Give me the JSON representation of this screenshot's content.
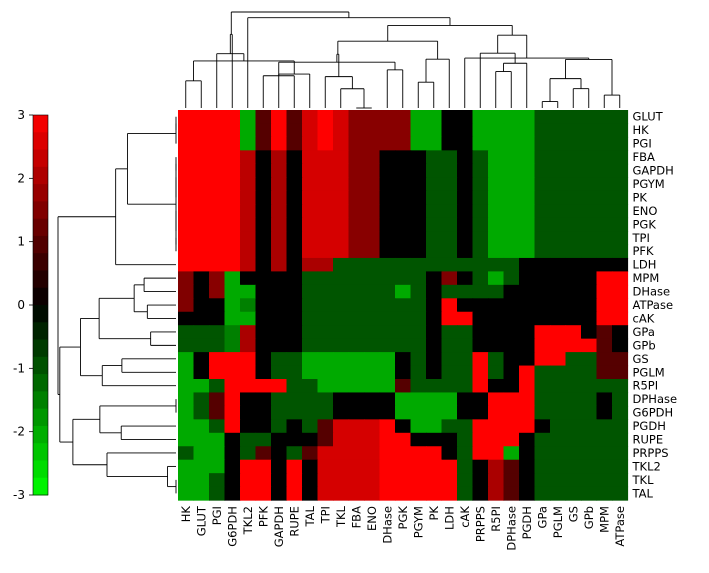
{
  "chart_data": {
    "type": "heatmap",
    "title": "",
    "xlabel": "",
    "ylabel": "",
    "colorbar": {
      "min": -3,
      "max": 3,
      "ticks": [
        3,
        2,
        1,
        0,
        -1,
        -2,
        -3
      ],
      "colormap": "green-black-red",
      "colors": {
        "low": "#00ff00",
        "mid": "#000000",
        "high": "#ff0000"
      }
    },
    "columns": [
      "HK",
      "GLUT",
      "PGI",
      "G6PDH",
      "TKL2",
      "PFK",
      "GAPDH",
      "RUPE",
      "TAL",
      "TPI",
      "TKL",
      "FBA",
      "ENO",
      "DHase",
      "PGK",
      "PGYM",
      "PK",
      "LDH",
      "cAK",
      "PRPPS",
      "R5PI",
      "DPHase",
      "PGDH",
      "GPa",
      "PGLM",
      "GS",
      "GPb",
      "MPM",
      "ATPase"
    ],
    "rows": [
      "GLUT",
      "HK",
      "PGI",
      "FBA",
      "GAPDH",
      "PGYM",
      "PK",
      "ENO",
      "PGK",
      "TPI",
      "PFK",
      "LDH",
      "MPM",
      "DHase",
      "ATPase",
      "cAK",
      "GPa",
      "GPb",
      "GS",
      "PGLM",
      "R5PI",
      "DPHase",
      "G6PDH",
      "PGDH",
      "RUPE",
      "PRPPS",
      "TKL2",
      "TKL",
      "TAL"
    ],
    "values": [
      [
        3,
        3,
        3,
        3,
        -2,
        1,
        3,
        1,
        2.5,
        3,
        2.5,
        1.6,
        1.6,
        1.6,
        1.6,
        -2,
        -2,
        0,
        0,
        -2,
        -2,
        -2,
        -2,
        -1,
        -1,
        -1,
        -1,
        -1,
        -1
      ],
      [
        3,
        3,
        3,
        3,
        -2,
        1,
        3,
        1,
        2.5,
        3,
        2.5,
        1.6,
        1.6,
        1.6,
        1.6,
        -2,
        -2,
        0,
        0,
        -2,
        -2,
        -2,
        -2,
        -1,
        -1,
        -1,
        -1,
        -1,
        -1
      ],
      [
        3,
        3,
        3,
        3,
        -2,
        1,
        3,
        1,
        2.5,
        3,
        2.5,
        1.6,
        1.6,
        1.6,
        1.6,
        -2,
        -2,
        0,
        0,
        -2,
        -2,
        -2,
        -2,
        -1,
        -1,
        -1,
        -1,
        -1,
        -1
      ],
      [
        3,
        3,
        3,
        3,
        2.2,
        0,
        2,
        0,
        2.5,
        2.5,
        2.5,
        1.6,
        1.6,
        0,
        0,
        0,
        -1,
        -1,
        0,
        -1,
        -2,
        -2,
        -2,
        -1,
        -1,
        -1,
        -1,
        -1,
        -1
      ],
      [
        3,
        3,
        3,
        3,
        2.2,
        0,
        2,
        0,
        2.5,
        2.5,
        2.5,
        1.6,
        1.6,
        0,
        0,
        0,
        -1,
        -1,
        0,
        -1,
        -2,
        -2,
        -2,
        -1,
        -1,
        -1,
        -1,
        -1,
        -1
      ],
      [
        3,
        3,
        3,
        3,
        2.2,
        0,
        2,
        0,
        2.5,
        2.5,
        2.5,
        1.6,
        1.6,
        0,
        0,
        0,
        -1,
        -1,
        0,
        -1,
        -2,
        -2,
        -2,
        -1,
        -1,
        -1,
        -1,
        -1,
        -1
      ],
      [
        3,
        3,
        3,
        3,
        2.2,
        0,
        2,
        0,
        2.5,
        2.5,
        2.5,
        1.6,
        1.6,
        0,
        0,
        0,
        -1,
        -1,
        0,
        -1,
        -2,
        -2,
        -2,
        -1,
        -1,
        -1,
        -1,
        -1,
        -1
      ],
      [
        3,
        3,
        3,
        3,
        2.2,
        0,
        2,
        0,
        2.5,
        2.5,
        2.5,
        1.6,
        1.6,
        0,
        0,
        0,
        -1,
        -1,
        0,
        -1,
        -2,
        -2,
        -2,
        -1,
        -1,
        -1,
        -1,
        -1,
        -1
      ],
      [
        3,
        3,
        3,
        3,
        2.2,
        0,
        2,
        0,
        2.5,
        2.5,
        2.5,
        1.6,
        1.6,
        0,
        0,
        0,
        -1,
        -1,
        0,
        -1,
        -2,
        -2,
        -2,
        -1,
        -1,
        -1,
        -1,
        -1,
        -1
      ],
      [
        3,
        3,
        3,
        3,
        2.2,
        0,
        2,
        0,
        2.5,
        2.5,
        2.5,
        1.6,
        1.6,
        0,
        0,
        0,
        -1,
        -1,
        0,
        -1,
        -2,
        -2,
        -2,
        -1,
        -1,
        -1,
        -1,
        -1,
        -1
      ],
      [
        3,
        3,
        3,
        3,
        2.2,
        0,
        2,
        0,
        2.5,
        2.5,
        2.5,
        1.6,
        1.6,
        0,
        0,
        0,
        -1,
        -1,
        0,
        -1,
        -2,
        -2,
        -2,
        -1,
        -1,
        -1,
        -1,
        -1,
        -1
      ],
      [
        3,
        3,
        3,
        3,
        2.2,
        0,
        2,
        0,
        2,
        2,
        -1,
        -1,
        -1,
        -1,
        -1,
        -1,
        -1,
        -1,
        -1,
        -1,
        -1,
        -1,
        0,
        0,
        0,
        0,
        0,
        0,
        0
      ],
      [
        1.5,
        0,
        1.6,
        -2,
        0,
        0,
        0,
        0,
        -1,
        -1,
        -1,
        -1,
        -1,
        -1,
        -1,
        -1,
        0,
        1.5,
        0,
        -1,
        -2,
        -1,
        0,
        0,
        0,
        0,
        0,
        3,
        3
      ],
      [
        1.5,
        0,
        1.6,
        -2,
        -2,
        0,
        0,
        0,
        -1,
        -1,
        -1,
        -1,
        -1,
        -1,
        -2,
        -1,
        0,
        -1,
        -1,
        -1,
        -1,
        0,
        0,
        0,
        0,
        0,
        0,
        3,
        3
      ],
      [
        1.5,
        0,
        0,
        -2,
        -1.5,
        0,
        0,
        0,
        -1,
        -1,
        -1,
        -1,
        -1,
        -1,
        -1,
        -1,
        0,
        3,
        0,
        0,
        0,
        0,
        0,
        0,
        0,
        0,
        0,
        3,
        3
      ],
      [
        0,
        0,
        0,
        -2,
        -2,
        0,
        0,
        0,
        -1,
        -1,
        -1,
        -1,
        -1,
        -1,
        -1,
        -1,
        0,
        3,
        3,
        0,
        0,
        0,
        0,
        0,
        0,
        0,
        0,
        3,
        3
      ],
      [
        -1,
        -1,
        -1,
        -1.5,
        2,
        0,
        0,
        0,
        -1,
        -1,
        -1,
        -1,
        -1,
        -1,
        -1,
        -1,
        0,
        -1,
        -1,
        0,
        0,
        0,
        0,
        3,
        3,
        3,
        0,
        1,
        0
      ],
      [
        -1,
        -1,
        -1,
        -1.5,
        2,
        0,
        0,
        0,
        -1,
        -1,
        -1,
        -1,
        -1,
        -1,
        -1,
        -1,
        0,
        -1,
        -1,
        0,
        0,
        0,
        0,
        3,
        3,
        3,
        3,
        1,
        0
      ],
      [
        -2,
        0,
        3,
        3,
        3,
        0,
        -1,
        -1,
        -2,
        -2,
        -2,
        -2,
        -2,
        -2,
        0,
        -1,
        0,
        -1,
        -1,
        3,
        -1,
        0,
        0,
        3,
        3,
        -1,
        -1,
        1,
        1
      ],
      [
        -2,
        0,
        3,
        3,
        3,
        0,
        -1,
        -1,
        -2,
        -2,
        -2,
        -2,
        -2,
        -2,
        0,
        -1,
        0,
        -1,
        -1,
        3,
        -1,
        0,
        3,
        -1,
        -1,
        -1,
        -1,
        1,
        1
      ],
      [
        -2,
        -2,
        -1,
        3,
        3,
        3,
        3,
        -1,
        -1,
        -2,
        -2,
        -2,
        -2,
        -2,
        1,
        -1,
        -1,
        -1,
        -1,
        3,
        0,
        0,
        3,
        -1,
        -1,
        -1,
        -1,
        -1,
        -1
      ],
      [
        -2,
        -1,
        1,
        3,
        0,
        0,
        -1,
        -1,
        -1,
        -1,
        0,
        0,
        0,
        0,
        -2,
        -2,
        -2,
        -2,
        0,
        0,
        3,
        3,
        3,
        -1,
        -1,
        -1,
        -1,
        0,
        -1
      ],
      [
        -2,
        -1,
        1,
        3,
        0,
        0,
        -1,
        -1,
        -1,
        -1,
        0,
        0,
        0,
        0,
        -2,
        -2,
        -2,
        -2,
        0,
        0,
        3,
        3,
        3,
        -1,
        -1,
        -1,
        -1,
        0,
        -1
      ],
      [
        -2,
        -2,
        -1,
        3,
        0,
        0,
        -1,
        0,
        -1,
        1,
        2.5,
        2.5,
        2.5,
        3,
        0,
        -2,
        -2,
        -1,
        -1,
        3,
        3,
        3,
        3,
        0,
        -1,
        -1,
        -1,
        -1,
        -1
      ],
      [
        -2,
        -2,
        -2,
        0,
        -1,
        -1,
        0,
        0,
        0,
        1,
        2.5,
        2.5,
        2.5,
        3,
        3,
        0,
        0,
        0,
        -1,
        3,
        3,
        3,
        0,
        -1,
        -1,
        -1,
        -1,
        -1,
        -1
      ],
      [
        -1,
        -2,
        -2,
        0,
        -1,
        1,
        0,
        -1,
        1,
        2.5,
        2.5,
        2.5,
        2.5,
        3,
        3,
        3,
        3,
        0,
        -1,
        3,
        3,
        -2,
        0,
        -1,
        -1,
        -1,
        -1,
        -1,
        -1
      ],
      [
        -2,
        -2,
        -2,
        0,
        3,
        3,
        0,
        3,
        0,
        2.5,
        2.5,
        2.5,
        2.5,
        3,
        3,
        3,
        3,
        3,
        -1,
        0,
        2,
        1,
        0,
        -1,
        -1,
        -1,
        -1,
        -1,
        -1
      ],
      [
        -2,
        -2,
        -1,
        0,
        3,
        3,
        0,
        3,
        0,
        2.5,
        2.5,
        2.5,
        2.5,
        3,
        3,
        3,
        3,
        3,
        -1,
        0,
        2,
        1,
        0,
        -1,
        -1,
        -1,
        -1,
        -1,
        -1
      ],
      [
        -2,
        -2,
        -1,
        0,
        3,
        3,
        0,
        3,
        0,
        2.5,
        2.5,
        2.5,
        2.5,
        3,
        3,
        3,
        3,
        3,
        -1,
        0,
        2,
        1,
        0,
        -1,
        -1,
        -1,
        -1,
        -1,
        -1
      ]
    ]
  }
}
